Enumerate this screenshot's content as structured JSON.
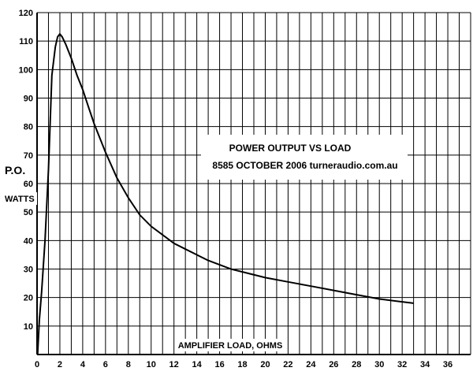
{
  "chart_data": {
    "type": "line",
    "title": "POWER OUTPUT VS LOAD",
    "subtitle": "8585 OCTOBER 2006  turneraudio.com.au",
    "xlabel": "AMPLIFIER LOAD, OHMS",
    "ylabel": "P.O.",
    "ylabel_unit": "WATTS",
    "xlim": [
      0,
      38
    ],
    "ylim": [
      0,
      120
    ],
    "x_ticks": [
      0,
      2,
      4,
      6,
      8,
      10,
      12,
      14,
      16,
      18,
      20,
      22,
      24,
      26,
      28,
      30,
      32,
      34,
      36
    ],
    "y_ticks": [
      10,
      20,
      30,
      40,
      50,
      60,
      70,
      80,
      90,
      100,
      110,
      120
    ],
    "grid": true,
    "colors": {
      "line": "#000000",
      "grid": "#000000",
      "background": "#ffffff"
    },
    "series": [
      {
        "x": [
          0.05,
          0.2,
          0.4,
          0.7,
          1.0,
          1.3,
          1.6,
          1.8,
          2.0,
          2.2,
          2.5,
          3.0,
          3.5,
          4.0,
          4.5,
          5.0,
          5.5,
          6.0,
          7.0,
          8.0,
          9.0,
          10.0,
          11.0,
          12.0,
          13.0,
          14.0,
          15.0,
          16.0,
          17.0,
          18.0,
          20.0,
          22.0,
          24.0,
          26.0,
          28.0,
          30.0,
          32.0,
          33.0
        ],
        "y": [
          0,
          12,
          22,
          40,
          65,
          98,
          108,
          111.5,
          112.5,
          111.5,
          109,
          104,
          98,
          93,
          87,
          81,
          76,
          71,
          62,
          55,
          49,
          45,
          42,
          39,
          37,
          35,
          33,
          31.5,
          30,
          29,
          27,
          25.5,
          24,
          22.5,
          21,
          19.5,
          18.5,
          18
        ]
      }
    ]
  }
}
